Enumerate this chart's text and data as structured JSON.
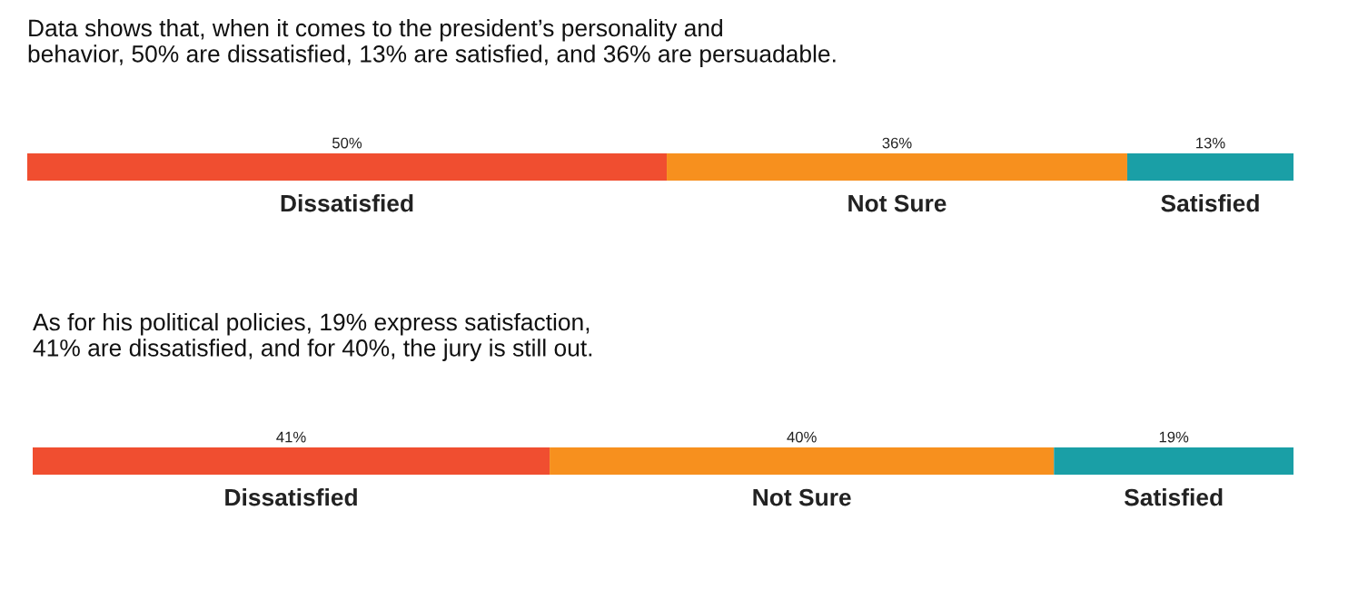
{
  "chart_data": [
    {
      "type": "bar",
      "orientation": "horizontal",
      "stacked": true,
      "title": "Data shows that, when it comes to the president’s personality and\nbehavior, 50% are dissatisfied, 13% are satisfied, and 36% are persuadable.",
      "categories": [
        null
      ],
      "series": [
        {
          "name": "Dissatisfied",
          "color": "#f04e30",
          "values": [
            50
          ],
          "value_labels": [
            "50%"
          ]
        },
        {
          "name": "Not Sure",
          "color": "#f7901e",
          "values": [
            36
          ],
          "value_labels": [
            "36%"
          ]
        },
        {
          "name": "Satisfied",
          "color": "#1a9fa6",
          "values": [
            13
          ],
          "value_labels": [
            "13%"
          ]
        }
      ]
    },
    {
      "type": "bar",
      "orientation": "horizontal",
      "stacked": true,
      "title": "As for his political policies, 19% express satisfaction,\n41% are dissatisfied, and for 40%, the jury is still out.",
      "categories": [
        null
      ],
      "series": [
        {
          "name": "Dissatisfied",
          "color": "#f04e30",
          "values": [
            41
          ],
          "value_labels": [
            "41%"
          ]
        },
        {
          "name": "Not Sure",
          "color": "#f7901e",
          "values": [
            40
          ],
          "value_labels": [
            "40%"
          ]
        },
        {
          "name": "Satisfied",
          "color": "#1a9fa6",
          "values": [
            19
          ],
          "value_labels": [
            "19%"
          ]
        }
      ]
    }
  ]
}
